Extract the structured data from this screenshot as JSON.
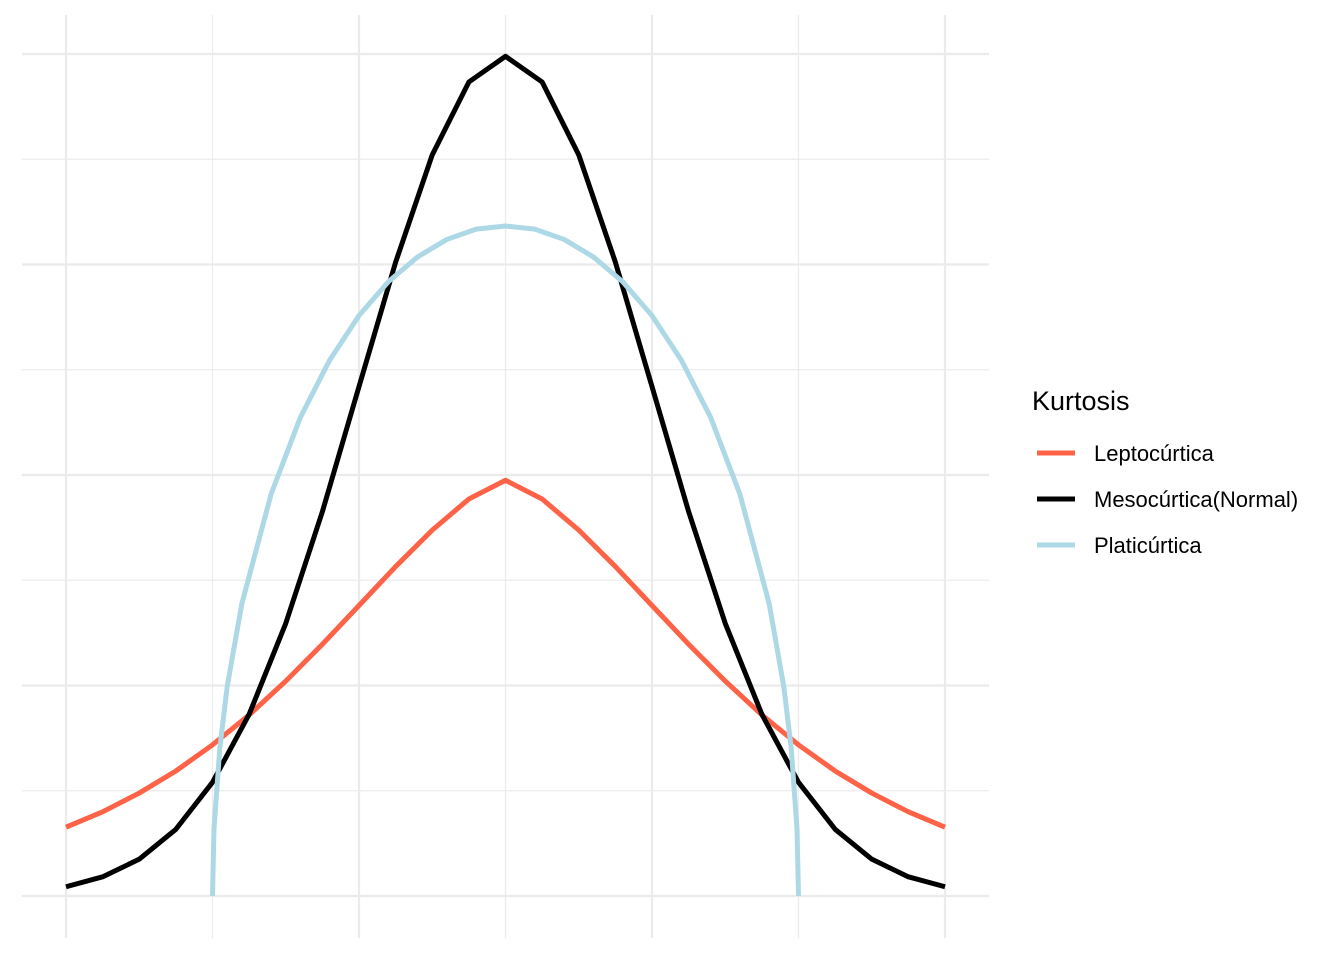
{
  "chart_data": {
    "type": "line",
    "title": "",
    "xlabel": "",
    "ylabel": "",
    "xlim": [
      -3,
      3
    ],
    "ylim": [
      0,
      0.4
    ],
    "grid": true,
    "legend": {
      "title": "Kurtosis",
      "placement": "right"
    },
    "series": [
      {
        "name": "Leptocúrtica",
        "color": "#FF6347",
        "distribution": "logistic",
        "x": [
          -3,
          -2.75,
          -2.5,
          -2.25,
          -2,
          -1.75,
          -1.5,
          -1.25,
          -1,
          -0.75,
          -0.5,
          -0.25,
          0,
          0.25,
          0.5,
          0.75,
          1,
          1.25,
          1.5,
          1.75,
          2,
          2.25,
          2.5,
          2.75,
          3
        ],
        "y": [
          0.0327,
          0.04,
          0.0489,
          0.0594,
          0.0718,
          0.086,
          0.1021,
          0.1196,
          0.138,
          0.1565,
          0.1738,
          0.1886,
          0.1975,
          0.1886,
          0.1738,
          0.1565,
          0.138,
          0.1196,
          0.1021,
          0.086,
          0.0718,
          0.0594,
          0.0489,
          0.04,
          0.0327
        ]
      },
      {
        "name": "Mesocúrtica(Normal)",
        "color": "#000000",
        "distribution": "normal",
        "x": [
          -3,
          -2.75,
          -2.5,
          -2.25,
          -2,
          -1.75,
          -1.5,
          -1.25,
          -1,
          -0.75,
          -0.5,
          -0.25,
          0,
          0.25,
          0.5,
          0.75,
          1,
          1.25,
          1.5,
          1.75,
          2,
          2.25,
          2.5,
          2.75,
          3
        ],
        "y": [
          0.0044,
          0.0091,
          0.0175,
          0.0317,
          0.054,
          0.0863,
          0.1295,
          0.1826,
          0.242,
          0.3011,
          0.3521,
          0.3867,
          0.3989,
          0.3867,
          0.3521,
          0.3011,
          0.242,
          0.1826,
          0.1295,
          0.0863,
          0.054,
          0.0317,
          0.0175,
          0.0091,
          0.0044
        ]
      },
      {
        "name": "Platicúrtica",
        "color": "#ADD8E6",
        "distribution": "semicircle",
        "x": [
          -2,
          -1.99,
          -1.95,
          -1.9,
          -1.8,
          -1.6,
          -1.4,
          -1.2,
          -1,
          -0.8,
          -0.6,
          -0.4,
          -0.2,
          0,
          0.2,
          0.4,
          0.6,
          0.8,
          1,
          1.2,
          1.4,
          1.6,
          1.8,
          1.9,
          1.95,
          1.99,
          2
        ],
        "y": [
          0,
          0.0317,
          0.0704,
          0.0993,
          0.1388,
          0.1909,
          0.2274,
          0.2546,
          0.2757,
          0.2918,
          0.3036,
          0.3119,
          0.3168,
          0.3183,
          0.3168,
          0.3119,
          0.3036,
          0.2918,
          0.2757,
          0.2546,
          0.2274,
          0.1909,
          0.1388,
          0.0993,
          0.0704,
          0.0317,
          0
        ]
      }
    ]
  }
}
